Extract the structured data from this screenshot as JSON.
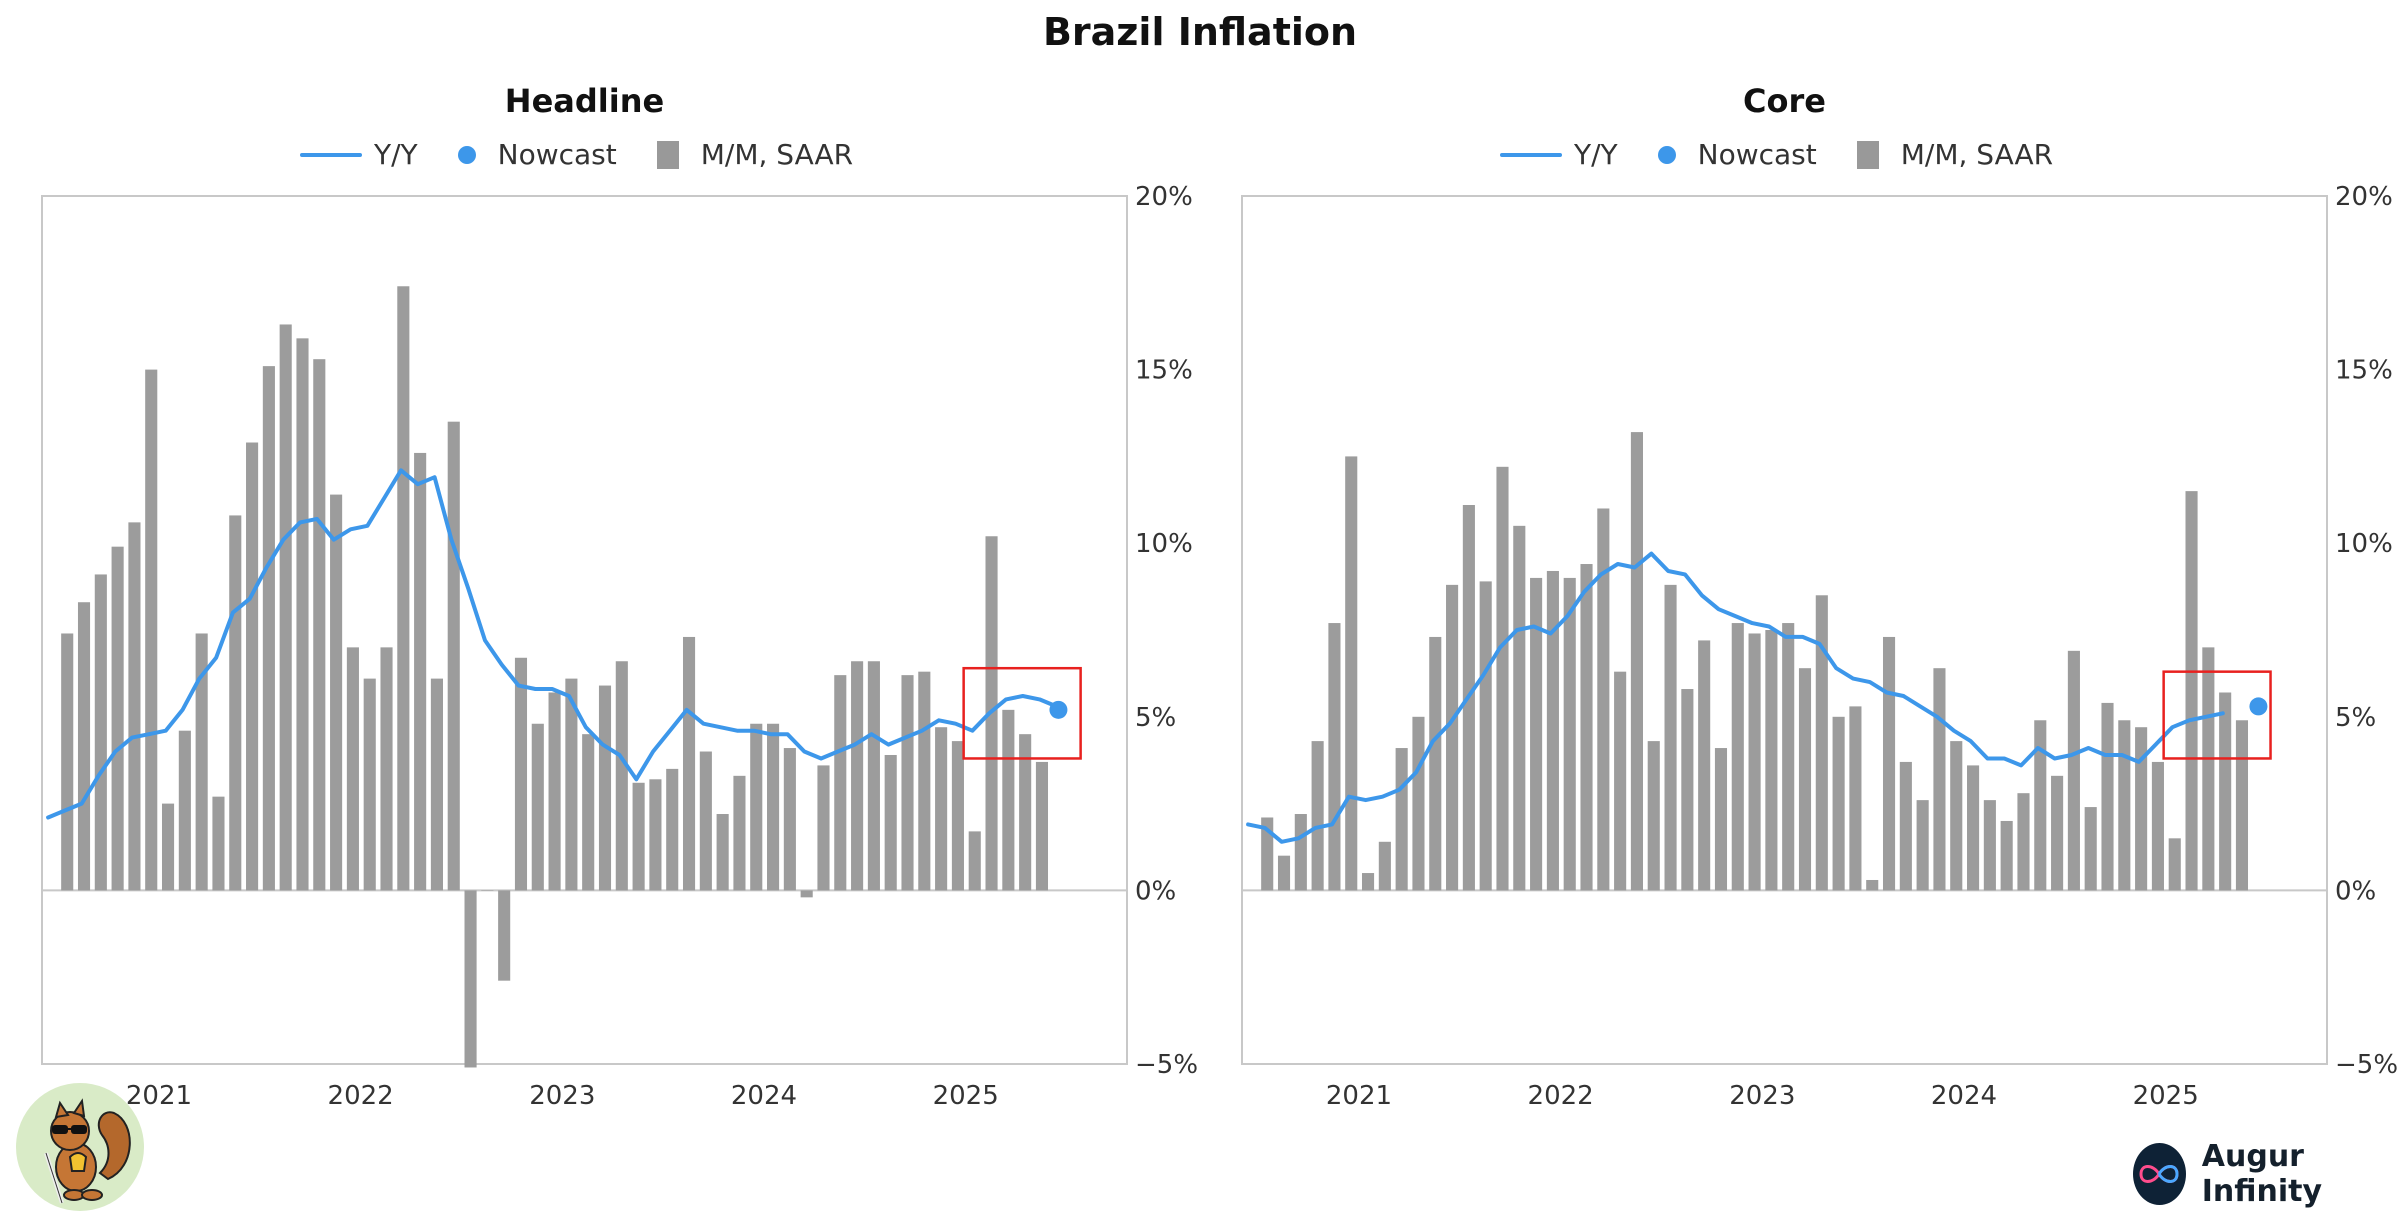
{
  "title": "Brazil Inflation",
  "legend": {
    "yy": "Y/Y",
    "nowcast": "Nowcast",
    "mm": "M/M, SAAR"
  },
  "colors": {
    "line": "#3d97ea",
    "bar": "#9c9c9c",
    "highlight": "#e8211f",
    "axis": "#c8c8c8"
  },
  "brand": "Augur Infinity",
  "chart_data": [
    {
      "type": "bar+line",
      "title": "Headline",
      "ylabel": "",
      "xlabel": "",
      "ylim": [
        -5,
        20
      ],
      "yticks": [
        "−5%",
        "0%",
        "5%",
        "10%",
        "15%",
        "20%"
      ],
      "ytick_values": [
        -5,
        0,
        5,
        10,
        15,
        20
      ],
      "xlim": [
        2020.5,
        2025.88
      ],
      "xticks": [
        "2021",
        "2022",
        "2023",
        "2024",
        "2025"
      ],
      "xtick_values": [
        2021.0,
        2022.0,
        2023.0,
        2024.0,
        2025.0
      ],
      "bar_start": 2020.625,
      "bars_mm_saar": [
        7.4,
        8.3,
        9.1,
        9.9,
        10.6,
        15.0,
        2.5,
        4.6,
        7.4,
        2.7,
        10.8,
        12.9,
        15.1,
        16.3,
        15.9,
        15.3,
        11.4,
        7.0,
        6.1,
        7.0,
        17.4,
        12.6,
        6.1,
        13.5,
        -5.1,
        0.0,
        -2.6,
        6.7,
        4.8,
        5.7,
        6.1,
        4.5,
        5.9,
        6.6,
        3.1,
        3.2,
        3.5,
        7.3,
        4.0,
        2.2,
        3.3,
        4.8,
        4.8,
        4.1,
        -0.2,
        3.6,
        6.2,
        6.6,
        6.6,
        3.9,
        6.2,
        6.3,
        4.7,
        4.3,
        1.7,
        10.2,
        5.2,
        4.5,
        3.7
      ],
      "line_start": 2020.53,
      "line_yy": [
        2.1,
        2.3,
        2.5,
        3.3,
        4.0,
        4.4,
        4.5,
        4.6,
        5.2,
        6.1,
        6.7,
        8.0,
        8.4,
        9.3,
        10.1,
        10.6,
        10.7,
        10.1,
        10.4,
        10.5,
        11.3,
        12.1,
        11.7,
        11.9,
        10.1,
        8.7,
        7.2,
        6.5,
        5.9,
        5.8,
        5.8,
        5.6,
        4.7,
        4.2,
        3.9,
        3.2,
        4.0,
        4.6,
        5.2,
        4.8,
        4.7,
        4.6,
        4.6,
        4.5,
        4.5,
        4.0,
        3.8,
        4.0,
        4.2,
        4.5,
        4.2,
        4.4,
        4.6,
        4.9,
        4.8,
        4.6,
        5.1,
        5.5,
        5.6,
        5.5,
        5.3
      ],
      "nowcast": {
        "x": 2025.54,
        "y": 5.2
      },
      "highlight_box": {
        "x0": 2025.07,
        "x1": 2025.65,
        "y0": 3.8,
        "y1": 6.4
      }
    },
    {
      "type": "bar+line",
      "title": "Core",
      "ylabel": "",
      "xlabel": "",
      "ylim": [
        -5,
        20
      ],
      "yticks": [
        "−5%",
        "0%",
        "5%",
        "10%",
        "15%",
        "20%"
      ],
      "ytick_values": [
        -5,
        0,
        5,
        10,
        15,
        20
      ],
      "xlim": [
        2020.5,
        2025.88
      ],
      "xticks": [
        "2021",
        "2022",
        "2023",
        "2024",
        "2025"
      ],
      "xtick_values": [
        2021.0,
        2022.0,
        2023.0,
        2024.0,
        2025.0
      ],
      "bar_start": 2020.625,
      "bars_mm_saar": [
        2.1,
        1.0,
        2.2,
        4.3,
        7.7,
        12.5,
        0.5,
        1.4,
        4.1,
        5.0,
        7.3,
        8.8,
        11.1,
        8.9,
        12.2,
        10.5,
        9.0,
        9.2,
        9.0,
        9.4,
        11.0,
        6.3,
        13.2,
        4.3,
        8.8,
        5.8,
        7.2,
        4.1,
        7.7,
        7.4,
        7.5,
        7.7,
        6.4,
        8.5,
        5.0,
        5.3,
        0.3,
        7.3,
        3.7,
        2.6,
        6.4,
        4.3,
        3.6,
        2.6,
        2.0,
        2.8,
        4.9,
        3.3,
        6.9,
        2.4,
        5.4,
        4.9,
        4.7,
        3.7,
        1.5,
        11.5,
        7.0,
        5.7,
        4.9
      ],
      "line_start": 2020.53,
      "line_yy": [
        1.9,
        1.8,
        1.4,
        1.5,
        1.8,
        1.9,
        2.7,
        2.6,
        2.7,
        2.9,
        3.4,
        4.3,
        4.8,
        5.5,
        6.2,
        7.0,
        7.5,
        7.6,
        7.4,
        7.9,
        8.6,
        9.1,
        9.4,
        9.3,
        9.7,
        9.2,
        9.1,
        8.5,
        8.1,
        7.9,
        7.7,
        7.6,
        7.3,
        7.3,
        7.1,
        6.4,
        6.1,
        6.0,
        5.7,
        5.6,
        5.3,
        5.0,
        4.6,
        4.3,
        3.8,
        3.8,
        3.6,
        4.1,
        3.8,
        3.9,
        4.1,
        3.9,
        3.9,
        3.7,
        4.2,
        4.7,
        4.9,
        5.0,
        5.1
      ],
      "nowcast": {
        "x": 2025.54,
        "y": 5.3
      },
      "highlight_box": {
        "x0": 2025.07,
        "x1": 2025.6,
        "y0": 3.8,
        "y1": 6.3
      }
    }
  ]
}
